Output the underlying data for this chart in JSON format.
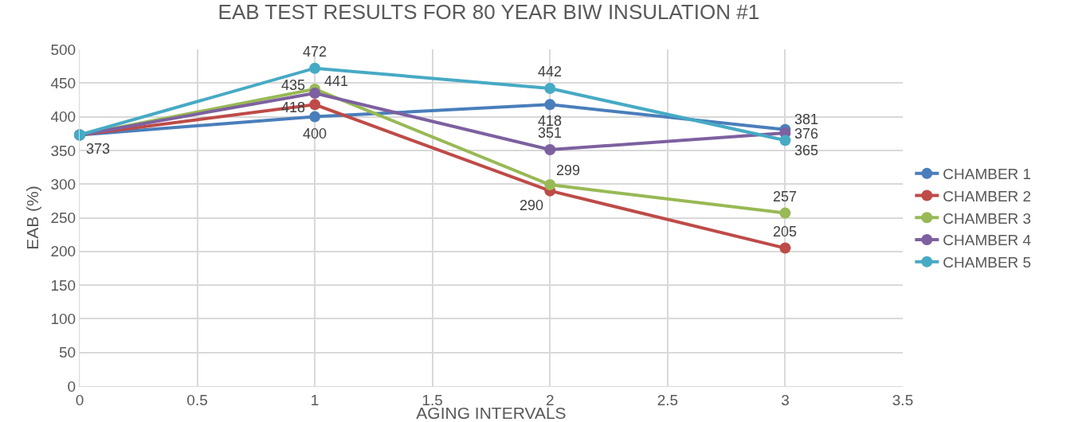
{
  "chart_data": {
    "type": "line",
    "title": "EAB TEST RESULTS FOR 80 YEAR BIW INSULATION #1",
    "xlabel": "AGING INTERVALS",
    "ylabel": "EAB (%)",
    "x": [
      0,
      1,
      2,
      3
    ],
    "series": [
      {
        "name": "CHAMBER 1",
        "color": "#4a7ebb",
        "values": [
          373,
          400,
          418,
          381
        ],
        "value_labels": [
          "373",
          "400",
          "418",
          "381"
        ]
      },
      {
        "name": "CHAMBER 2",
        "color": "#be4b48",
        "values": [
          373,
          418,
          290,
          205
        ],
        "value_labels": [
          null,
          "418",
          "290",
          "205"
        ]
      },
      {
        "name": "CHAMBER 3",
        "color": "#98b954",
        "values": [
          373,
          441,
          299,
          257
        ],
        "value_labels": [
          null,
          "441",
          "299",
          "257"
        ]
      },
      {
        "name": "CHAMBER 4",
        "color": "#7d60a0",
        "values": [
          373,
          435,
          351,
          376
        ],
        "value_labels": [
          null,
          "435",
          "351",
          "376"
        ]
      },
      {
        "name": "CHAMBER 5",
        "color": "#46aac5",
        "values": [
          373,
          472,
          442,
          365
        ],
        "value_labels": [
          null,
          "472",
          "442",
          "365"
        ]
      }
    ],
    "xlim": [
      0,
      3.5
    ],
    "xticks": [
      0,
      0.5,
      1,
      1.5,
      2,
      2.5,
      3,
      3.5
    ],
    "ylim": [
      0,
      500
    ],
    "yticks": [
      0,
      50,
      100,
      150,
      200,
      250,
      300,
      350,
      400,
      450,
      500
    ],
    "grid": true,
    "legend": "right",
    "marker": "circle",
    "line_style": "solid"
  }
}
